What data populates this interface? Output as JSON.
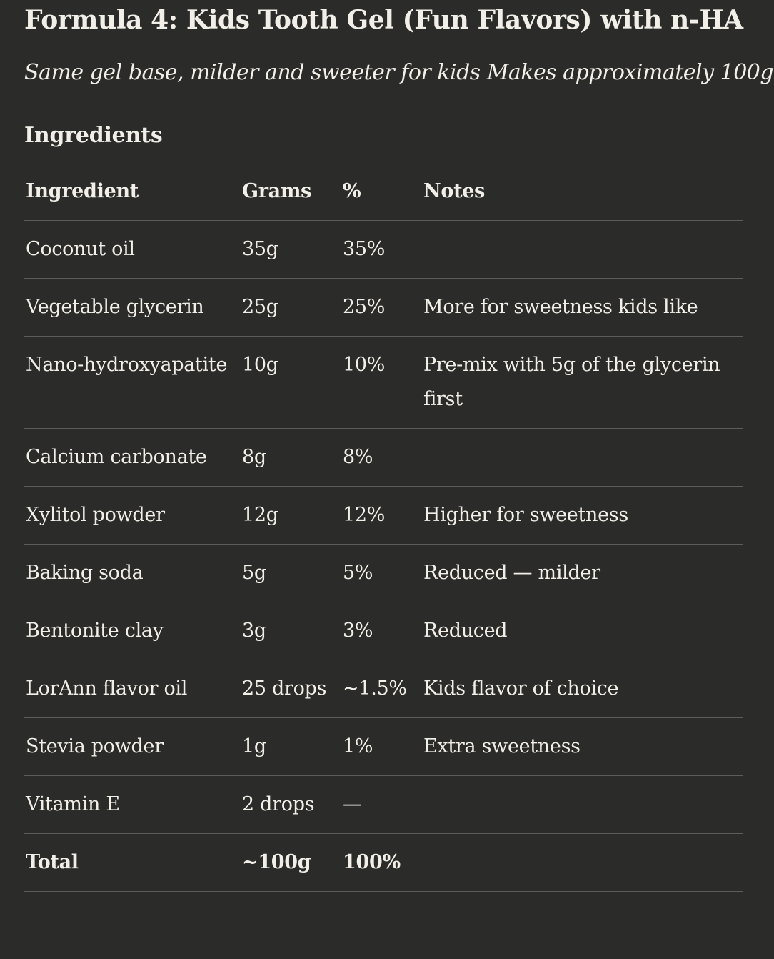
{
  "title": "Formula 4: Kids Tooth Gel (Fun Flavors) with n-HA",
  "subtitle": "Same gel base, milder and sweeter for kids Makes approximately 100g",
  "section_heading": "Ingredients",
  "table": {
    "headers": [
      "Ingredient",
      "Grams",
      "%",
      "Notes"
    ],
    "rows": [
      [
        "Coconut oil",
        "35g",
        "35%",
        ""
      ],
      [
        "Vegetable glycerin",
        "25g",
        "25%",
        "More for sweetness kids like"
      ],
      [
        "Nano-hydroxyapatite",
        "10g",
        "10%",
        "Pre-mix with 5g of the glycerin first"
      ],
      [
        "Calcium carbonate",
        "8g",
        "8%",
        ""
      ],
      [
        "Xylitol powder",
        "12g",
        "12%",
        "Higher for sweetness"
      ],
      [
        "Baking soda",
        "5g",
        "5%",
        "Reduced — milder"
      ],
      [
        "Bentonite clay",
        "3g",
        "3%",
        "Reduced"
      ],
      [
        "LorAnn flavor oil",
        "25 drops",
        "~1.5%",
        "Kids flavor of choice"
      ],
      [
        "Stevia powder",
        "1g",
        "1%",
        "Extra sweetness"
      ],
      [
        "Vitamin E",
        "2 drops",
        "—",
        ""
      ]
    ],
    "total": [
      "Total",
      "~100g",
      "100%",
      ""
    ]
  }
}
